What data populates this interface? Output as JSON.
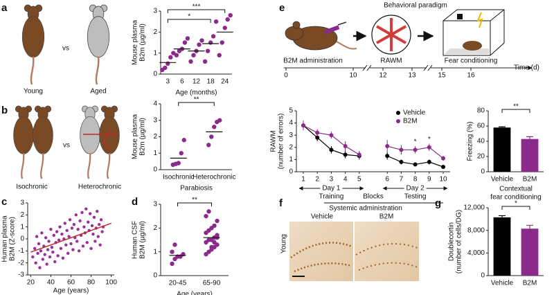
{
  "panel_labels": [
    "a",
    "b",
    "c",
    "d",
    "e",
    "f",
    "g"
  ],
  "illustrations": {
    "a": {
      "labels": [
        "Young",
        "Aged"
      ],
      "vs": "vs"
    },
    "b": {
      "labels": [
        "Isochronic",
        "Heterochronic"
      ],
      "vs": "vs"
    }
  },
  "paradigm": {
    "title": "Behavioral paradigm",
    "steps": [
      "B2M administration",
      "RAWM",
      "Fear conditioning"
    ],
    "timeline": {
      "ticks": [
        0,
        10,
        12,
        13,
        15,
        16
      ],
      "label": "Time (d)"
    }
  },
  "histology": {
    "title": "Systemic administration",
    "columns": [
      "Vehicle",
      "B2M"
    ],
    "row": "Young"
  },
  "chart_data": [
    {
      "type": "strip",
      "y_label": [
        "Mouse plasma",
        "B2m (µg/ml)"
      ],
      "x_label": "Age (months)",
      "color": "#8b2a8b",
      "categories": [
        "3",
        "6",
        "12",
        "18",
        "24"
      ],
      "points": [
        [
          0.2,
          0.3,
          0.5,
          0.8,
          1.0
        ],
        [
          0.9,
          1.1,
          1.2,
          1.5,
          1.7
        ],
        [
          0.6,
          0.9,
          1.1,
          1.4,
          1.6
        ],
        [
          0.6,
          1.1,
          1.5,
          1.8,
          2.5
        ],
        [
          0.9,
          1.5,
          2.2,
          2.6,
          2.8
        ]
      ],
      "means": [
        0.55,
        1.2,
        1.1,
        1.45,
        2.0
      ],
      "ylim": [
        0,
        3
      ],
      "yticks": [
        0,
        1,
        2,
        3
      ],
      "brackets": [
        {
          "between": [
            "3",
            "18"
          ],
          "label": "*"
        },
        {
          "between": [
            "3",
            "24"
          ],
          "label": "***"
        }
      ]
    },
    {
      "type": "strip",
      "y_label": [
        "Mouse plasma",
        "B2m (µg/ml)"
      ],
      "x_label": "Parabiosis",
      "color": "#8b2a8b",
      "categories": [
        "Isochronic",
        "Heterochronic"
      ],
      "points": [
        [
          0.3,
          0.35,
          0.4,
          1.0,
          1.8
        ],
        [
          1.5,
          2.0,
          2.6,
          2.9,
          3.0
        ]
      ],
      "means": [
        0.7,
        2.3
      ],
      "ylim": [
        0,
        4
      ],
      "yticks": [
        0,
        1,
        2,
        3,
        4
      ],
      "brackets": [
        {
          "between": [
            "Isochronic",
            "Heterochronic"
          ],
          "label": "**"
        }
      ]
    },
    {
      "type": "scatter",
      "y_label": [
        "Human plasma",
        "B2M (Z-score)"
      ],
      "x_label": "Age (years)",
      "color": "#9b2f9b",
      "x": [
        22,
        24,
        25,
        26,
        27,
        28,
        29,
        30,
        31,
        32,
        33,
        34,
        35,
        36,
        37,
        38,
        39,
        40,
        41,
        42,
        43,
        44,
        45,
        46,
        47,
        48,
        49,
        50,
        51,
        52,
        53,
        54,
        55,
        56,
        57,
        58,
        59,
        60,
        61,
        62,
        63,
        64,
        65,
        66,
        67,
        68,
        69,
        70,
        71,
        72,
        73,
        74,
        75,
        76,
        77,
        78,
        79,
        80,
        81,
        82,
        83,
        84,
        85,
        86,
        87,
        88,
        89,
        90,
        91,
        92
      ],
      "values": [
        -1.5,
        -0.8,
        -2.0,
        0.2,
        -1.2,
        -0.4,
        -2.4,
        -1.0,
        0.5,
        -1.7,
        -0.6,
        -1.3,
        0.1,
        -2.1,
        -0.9,
        -0.2,
        -1.5,
        0.8,
        -0.7,
        -1.1,
        0.3,
        -1.9,
        -0.3,
        0.6,
        -1.4,
        -0.1,
        1.0,
        -0.8,
        0.4,
        -1.6,
        0.0,
        1.3,
        -0.5,
        0.7,
        -1.2,
        0.2,
        1.6,
        -0.4,
        0.9,
        -0.9,
        1.2,
        0.1,
        2.0,
        -0.2,
        0.8,
        -1.0,
        1.5,
        0.3,
        2.2,
        -0.6,
        1.0,
        0.5,
        2.5,
        -0.3,
        1.4,
        0.7,
        2.1,
        -0.8,
        1.1,
        0.4,
        1.8,
        -0.2,
        0.9,
        2.3,
        0.2,
        1.2,
        -0.5,
        1.6,
        0.6,
        1.0
      ],
      "fit": {
        "x": [
          20,
          100
        ],
        "values": [
          -1.1,
          1.3
        ],
        "color": "#c0282d"
      },
      "xlim": [
        17,
        103
      ],
      "xticks": [
        20,
        40,
        60,
        80,
        100
      ],
      "ylim": [
        -3,
        3
      ],
      "yticks": [
        -3,
        -2,
        -1,
        0,
        1,
        2,
        3
      ]
    },
    {
      "type": "strip",
      "y_label": [
        "Human CSF",
        "B2M (µg/ml)"
      ],
      "x_label": "Age (years)",
      "color": "#8b2a8b",
      "categories": [
        "20-45",
        "65-90"
      ],
      "points": [
        [
          0.5,
          0.7,
          0.8,
          0.8,
          0.9,
          1.0,
          1.3
        ],
        [
          0.9,
          1.0,
          1.1,
          1.2,
          1.3,
          1.4,
          1.5,
          1.5,
          1.6,
          1.7,
          1.8,
          1.9,
          2.0,
          2.1,
          2.3,
          2.5,
          2.7,
          1.2,
          1.4,
          1.6
        ]
      ],
      "means": [
        0.85,
        1.6
      ],
      "ylim": [
        0,
        3
      ],
      "yticks": [
        0,
        1,
        2,
        3
      ],
      "brackets": [
        {
          "between": [
            "20-45",
            "65-90"
          ],
          "label": "**"
        }
      ]
    },
    {
      "type": "line",
      "y_label": [
        "RAWM",
        "(number of errors)"
      ],
      "categories": [
        "1",
        "2",
        "3",
        "4",
        "5",
        null,
        "6",
        "7",
        "8",
        "9",
        "10"
      ],
      "series": [
        {
          "name": "Vehicle",
          "color": "#000000",
          "values": [
            3.8,
            2.8,
            1.8,
            1.4,
            1.3,
            null,
            1.3,
            0.8,
            0.6,
            0.8,
            0.4
          ],
          "errors": [
            0.4,
            0.3,
            0.3,
            0.3,
            0.3,
            null,
            0.3,
            0.2,
            0.15,
            0.2,
            0.15
          ]
        },
        {
          "name": "B2M",
          "color": "#8b2a8b",
          "values": [
            3.8,
            3.2,
            3.0,
            2.1,
            1.4,
            null,
            2.1,
            1.8,
            1.8,
            2.0,
            1.1
          ],
          "errors": [
            0.4,
            0.3,
            0.3,
            0.4,
            0.3,
            null,
            0.5,
            0.4,
            0.3,
            0.3,
            0.2
          ]
        }
      ],
      "ylim": [
        0,
        5
      ],
      "yticks": [
        0,
        1,
        2,
        3,
        4,
        5
      ],
      "legend": "upper right",
      "annotations": [
        {
          "category": "8",
          "label": "*"
        },
        {
          "category": "9",
          "label": "*"
        }
      ],
      "day_labels": [
        "Day 1",
        "Day 2"
      ],
      "phase_labels": [
        "Training",
        "Blocks",
        "Testing"
      ]
    },
    {
      "type": "bar",
      "y_label": [
        "Freezing (%)"
      ],
      "x_label": [
        "Contextual",
        "fear conditioning"
      ],
      "categories": [
        "Vehicle",
        "B2M"
      ],
      "values": [
        58,
        43
      ],
      "errors": [
        1,
        3
      ],
      "colors": [
        "#000000",
        "#8b2a8b"
      ],
      "ylim": [
        0,
        80
      ],
      "yticks": [
        0,
        20,
        40,
        60,
        80
      ],
      "brackets": [
        {
          "between": [
            "Vehicle",
            "B2M"
          ],
          "label": "**"
        }
      ]
    },
    {
      "type": "bar",
      "y_label": [
        "Doublecortin",
        "(number of cells/DG)"
      ],
      "categories": [
        "Vehicle",
        "B2M"
      ],
      "values": [
        10300,
        8300
      ],
      "errors": [
        300,
        600
      ],
      "colors": [
        "#000000",
        "#8b2a8b"
      ],
      "ylim": [
        0,
        12000
      ],
      "yticks": [
        0,
        {
          "value": 4000,
          "label": "4,000"
        },
        {
          "value": 8000,
          "label": "8,000"
        },
        {
          "value": 12000,
          "label": "12,000"
        }
      ],
      "brackets": [
        {
          "between": [
            "Vehicle",
            "B2M"
          ],
          "label": "*"
        }
      ]
    }
  ]
}
